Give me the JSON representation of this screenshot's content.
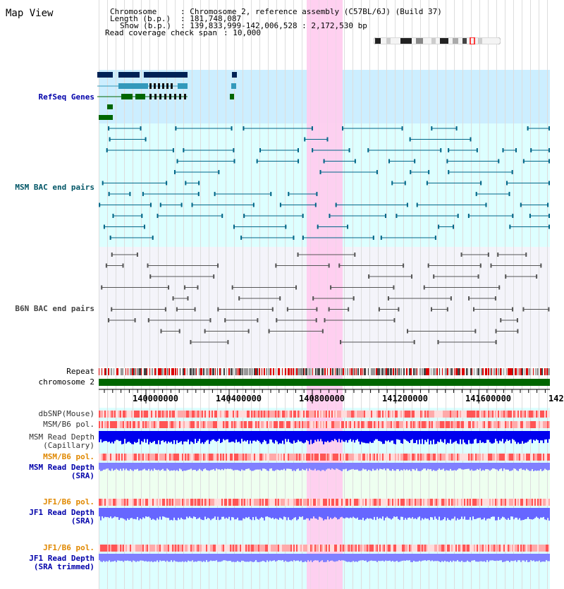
{
  "view_title": "Map View",
  "header": {
    "chromosome_key": "Chromosome",
    "chromosome_val": ": Chromosome 2, reference assembly (C57BL/6J) (Build 37)",
    "length_key": "Length (b.p.)",
    "length_val": ": 181,748,087",
    "show_key": "Show (b.p.)",
    "show_val": ": 139,833,999-142,006,528 : 2,172,530 bp",
    "coverage_key": "Read coverage check span",
    "coverage_val": ": 10,000"
  },
  "tracks": {
    "refseq": "RefSeq Genes",
    "msm_bac": "MSM BAC end pairs",
    "b6n_bac": "B6N BAC end pairs",
    "repeat": "Repeat",
    "chromosome": "chromosome 2",
    "dbsnp": "dbSNP(Mouse)",
    "msm_b6_pol": "MSM/B6 pol.",
    "msm_depth_cap_1": "MSM Read Depth",
    "msm_depth_cap_2": "(Capillary)",
    "msm_b6_pol_sra": "MSM/B6 pol.",
    "msm_depth_sra_1": "MSM Read Depth",
    "msm_depth_sra_2": "(SRA)",
    "jf1_b6_pol": "JF1/B6 pol.",
    "jf1_depth_1": "JF1 Read Depth",
    "jf1_depth_2": "(SRA)",
    "jf1_b6_pol_trim": "JF1/B6 pol.",
    "jf1_trim_1": "JF1 Read Depth",
    "jf1_trim_2": "(SRA trimmed)"
  },
  "ruler": {
    "ticks": [
      "140000000",
      "140400000",
      "140800000",
      "141200000",
      "141600000",
      "142"
    ]
  },
  "colors": {
    "label_blue": "#0000aa",
    "label_teal": "#005566",
    "label_orange": "#e08800",
    "highlight": "#ffccee",
    "refseq_bg": "#cceeff",
    "msm_bg": "#ddffff",
    "b6n_bg": "#f2f2f8",
    "depth_blue": "#0000ee",
    "depth_light": "#7777ff",
    "chrom_green": "#006600"
  }
}
